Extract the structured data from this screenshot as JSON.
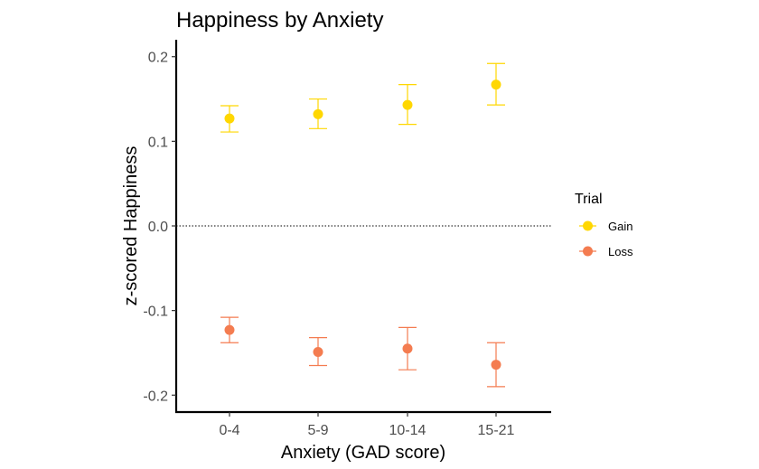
{
  "chart_data": {
    "type": "scatter",
    "title": "Happiness by Anxiety",
    "xlabel": "Anxiety (GAD score)",
    "ylabel": "z-scored Happiness",
    "categories": [
      "0-4",
      "5-9",
      "10-14",
      "15-21"
    ],
    "ylim": [
      -0.22,
      0.22
    ],
    "yticks": [
      -0.2,
      -0.1,
      0.0,
      0.1,
      0.2
    ],
    "ytick_labels": [
      "-0.2",
      "-0.1",
      "0.0",
      "0.1",
      "0.2"
    ],
    "reference_line": {
      "y": 0.0,
      "style": "dotted"
    },
    "grid": false,
    "error_bars": true,
    "legend": {
      "title": "Trial",
      "position": "right"
    },
    "series": [
      {
        "name": "Gain",
        "color": "#FFD700",
        "values": [
          0.127,
          0.132,
          0.143,
          0.167
        ],
        "lower": [
          0.111,
          0.115,
          0.12,
          0.143
        ],
        "upper": [
          0.142,
          0.15,
          0.167,
          0.192
        ]
      },
      {
        "name": "Loss",
        "color": "#F47C50",
        "values": [
          -0.123,
          -0.149,
          -0.145,
          -0.164
        ],
        "lower": [
          -0.138,
          -0.165,
          -0.17,
          -0.19
        ],
        "upper": [
          -0.108,
          -0.132,
          -0.12,
          -0.138
        ]
      }
    ]
  }
}
